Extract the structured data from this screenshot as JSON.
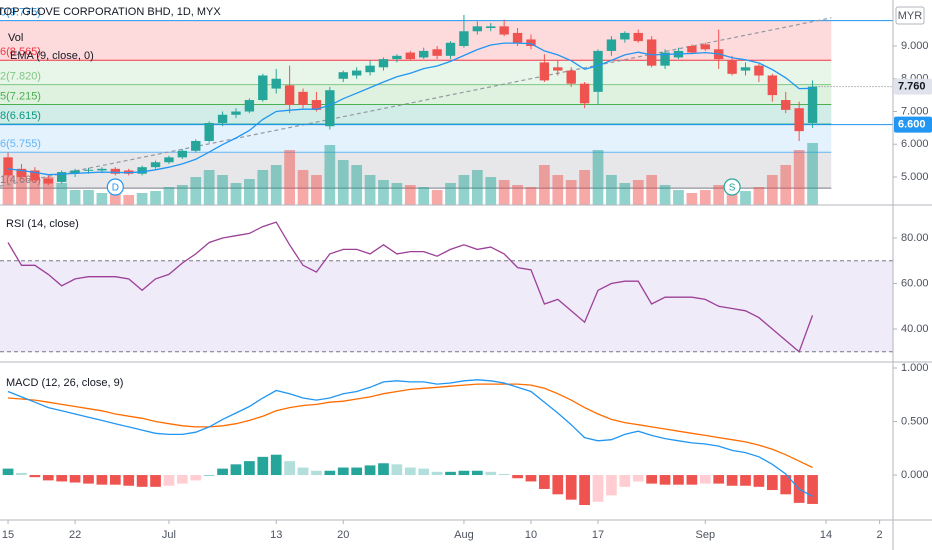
{
  "chart_data": [
    {
      "type": "candlestick",
      "title": "TOP GLOVE CORPORATION BHD, 1D, MYX",
      "currency": "MYR",
      "up_color": "#26a69a",
      "down_color": "#ef5350",
      "xlim": [
        -0.6,
        66
      ],
      "xticks": [
        {
          "value": 0,
          "label": "15"
        },
        {
          "value": 5,
          "label": "22"
        },
        {
          "value": 12,
          "label": "Jul"
        },
        {
          "value": 20,
          "label": "13"
        },
        {
          "value": 25,
          "label": "20"
        },
        {
          "value": 34,
          "label": "Aug"
        },
        {
          "value": 39,
          "label": "10"
        },
        {
          "value": 44,
          "label": "17"
        },
        {
          "value": 52,
          "label": "Sep"
        },
        {
          "value": 61,
          "label": "14"
        },
        {
          "value": 65,
          "label": "2"
        }
      ],
      "ylim": [
        4.145,
        10.405
      ],
      "yticks": [
        {
          "value": 9,
          "label": "9.000"
        },
        {
          "value": 8,
          "label": "8.000"
        },
        {
          "value": 7,
          "label": "7.000"
        },
        {
          "value": 6,
          "label": "6.000"
        },
        {
          "value": 5,
          "label": "5.000"
        }
      ],
      "open": [
        5.6,
        5.25,
        5.2,
        4.95,
        4.85,
        5.1,
        5.2,
        5.2,
        5.25,
        5.2,
        5.1,
        5.3,
        5.45,
        5.6,
        5.8,
        6.1,
        6.65,
        6.9,
        7.0,
        7.35,
        7.7,
        7.8,
        7.6,
        7.35,
        6.55,
        8.0,
        8.1,
        8.2,
        8.35,
        8.6,
        8.8,
        8.65,
        8.9,
        8.7,
        9.0,
        9.45,
        9.55,
        9.6,
        9.4,
        9.2,
        8.5,
        8.35,
        8.25,
        7.85,
        7.6,
        8.85,
        9.2,
        9.4,
        9.2,
        8.4,
        8.65,
        9.0,
        9.05,
        8.9,
        8.55,
        8.25,
        8.4,
        8.1,
        7.35,
        7.1,
        6.65
      ],
      "high": [
        5.75,
        5.4,
        5.3,
        5.05,
        5.2,
        5.25,
        5.28,
        5.3,
        5.3,
        5.25,
        5.35,
        5.5,
        5.65,
        5.85,
        6.15,
        6.7,
        7.0,
        7.1,
        7.4,
        8.15,
        8.3,
        8.4,
        7.7,
        7.6,
        7.75,
        8.25,
        8.35,
        8.55,
        8.65,
        8.75,
        8.85,
        8.95,
        9.0,
        9.15,
        9.95,
        9.75,
        9.7,
        9.8,
        9.55,
        9.35,
        8.75,
        8.55,
        8.35,
        7.9,
        8.9,
        9.3,
        9.45,
        9.5,
        9.3,
        8.9,
        8.95,
        9.05,
        9.1,
        9.5,
        8.7,
        8.5,
        8.45,
        8.15,
        7.6,
        7.3,
        7.95
      ],
      "low": [
        5.0,
        4.95,
        4.85,
        4.75,
        4.8,
        5.0,
        5.1,
        5.12,
        5.05,
        5.05,
        5.05,
        5.25,
        5.4,
        5.55,
        5.75,
        6.05,
        6.55,
        6.8,
        6.95,
        7.3,
        7.55,
        6.95,
        7.1,
        7.0,
        6.45,
        7.9,
        8.0,
        8.1,
        8.25,
        8.5,
        8.55,
        8.6,
        8.6,
        8.6,
        8.95,
        9.35,
        9.45,
        9.3,
        9.0,
        8.9,
        7.9,
        8.1,
        7.75,
        7.1,
        7.2,
        8.7,
        9.1,
        9.1,
        8.35,
        8.3,
        8.6,
        8.75,
        8.85,
        8.3,
        8.1,
        8.1,
        7.9,
        7.3,
        6.95,
        6.1,
        6.5
      ],
      "close": [
        5.05,
        5.0,
        4.9,
        4.8,
        5.15,
        5.2,
        5.22,
        5.25,
        5.1,
        5.1,
        5.3,
        5.45,
        5.6,
        5.8,
        6.1,
        6.65,
        6.9,
        7.0,
        7.35,
        8.1,
        8.0,
        7.2,
        7.2,
        7.05,
        7.65,
        8.2,
        8.25,
        8.4,
        8.6,
        8.7,
        8.6,
        8.85,
        8.7,
        9.1,
        9.45,
        9.6,
        9.6,
        9.35,
        9.1,
        9.0,
        7.95,
        8.25,
        7.85,
        7.25,
        8.85,
        9.2,
        9.4,
        9.15,
        8.4,
        8.8,
        8.85,
        8.8,
        8.9,
        8.6,
        8.15,
        8.35,
        8.1,
        7.5,
        7.05,
        6.4,
        7.76
      ],
      "volume": {
        "name": "Vol",
        "lim": [
          0,
          100
        ],
        "values": [
          30,
          35,
          25,
          28,
          22,
          15,
          15,
          12,
          18,
          10,
          12,
          14,
          18,
          20,
          28,
          35,
          30,
          22,
          26,
          35,
          40,
          55,
          35,
          30,
          60,
          45,
          40,
          30,
          25,
          22,
          20,
          18,
          15,
          22,
          30,
          35,
          28,
          25,
          20,
          18,
          40,
          30,
          25,
          35,
          55,
          30,
          22,
          25,
          30,
          20,
          15,
          12,
          15,
          20,
          18,
          14,
          18,
          30,
          40,
          55,
          62
        ]
      },
      "ema": {
        "name": "EMA (9, close, 0)",
        "color": "#2196f3",
        "values": [
          5.25,
          5.2,
          5.14,
          5.07,
          5.09,
          5.11,
          5.13,
          5.15,
          5.14,
          5.13,
          5.16,
          5.22,
          5.3,
          5.4,
          5.54,
          5.76,
          5.99,
          6.19,
          6.42,
          6.76,
          7.0,
          7.04,
          7.07,
          7.07,
          7.19,
          7.39,
          7.56,
          7.73,
          7.9,
          8.06,
          8.17,
          8.31,
          8.39,
          8.53,
          8.71,
          8.89,
          9.03,
          9.09,
          9.09,
          9.07,
          8.85,
          8.73,
          8.55,
          8.29,
          8.4,
          8.56,
          8.73,
          8.81,
          8.73,
          8.74,
          8.76,
          8.77,
          8.8,
          8.76,
          8.64,
          8.58,
          8.48,
          8.28,
          8.03,
          7.7,
          7.71
        ]
      },
      "fib": {
        "x_end": 61.4,
        "levels": [
          {
            "value": 9.775,
            "label": "0(9.775)",
            "color": "#2196f3"
          },
          {
            "value": 8.565,
            "label": "6(8.565)",
            "color": "#f23645"
          },
          {
            "value": 7.82,
            "label": "2(7.820)",
            "color": "#81c784"
          },
          {
            "value": 7.215,
            "label": "5(7.215)",
            "color": "#4caf50"
          },
          {
            "value": 6.615,
            "label": "8(6.615)",
            "color": "#089981"
          },
          {
            "value": 5.755,
            "label": "6(5.755)",
            "color": "#64b5f6"
          },
          {
            "value": 4.66,
            "label": "1(4.660)",
            "color": "#787b86"
          }
        ]
      },
      "trend_line": {
        "x": [
          -0.6,
          61.4
        ],
        "y": [
          4.72,
          9.86
        ],
        "color": "#9598a1"
      },
      "price_labels": [
        {
          "value": 7.76,
          "label": "7.760",
          "color": "#e0e3eb",
          "text_color": "#131722"
        },
        {
          "value": 6.6,
          "label": "6.600",
          "color": "#2196f3",
          "text_color": "#ffffff"
        }
      ],
      "markers": [
        {
          "x": 8,
          "label": "D",
          "color": "#2196f3"
        },
        {
          "x": 54,
          "label": "S",
          "color": "#26a69a"
        }
      ]
    },
    {
      "type": "line",
      "title": "RSI (14, close)",
      "color": "#9c3f98",
      "ylim": [
        25.5,
        94.5
      ],
      "yticks": [
        {
          "value": 80,
          "label": "80.00"
        },
        {
          "value": 60,
          "label": "60.00"
        },
        {
          "value": 40,
          "label": "40.00"
        }
      ],
      "band": [
        30,
        70
      ],
      "band_color": "#7e57c2",
      "values": [
        78,
        68,
        68,
        64,
        59,
        62,
        63,
        63,
        63,
        62,
        57,
        62,
        64,
        69,
        73,
        78,
        80,
        81,
        82,
        85,
        87,
        77,
        68,
        65,
        73,
        75,
        75,
        73,
        77,
        73,
        74,
        74,
        72,
        75,
        77,
        75,
        76,
        73,
        67,
        66,
        51,
        53,
        48,
        43,
        57,
        60,
        61,
        61,
        51,
        54,
        54,
        54,
        53,
        50,
        49,
        48,
        45,
        40,
        35,
        30,
        46
      ]
    },
    {
      "type": "macd",
      "title": "MACD (12, 26, close, 9)",
      "ylim": [
        -0.42,
        1.056
      ],
      "yticks": [
        {
          "value": 1,
          "label": "1.000"
        },
        {
          "value": 0.5,
          "label": "0.500"
        },
        {
          "value": 0,
          "label": "0.000"
        }
      ],
      "macd": {
        "color": "#2196f3",
        "values": [
          0.78,
          0.73,
          0.68,
          0.63,
          0.6,
          0.57,
          0.54,
          0.51,
          0.48,
          0.45,
          0.42,
          0.39,
          0.38,
          0.38,
          0.4,
          0.45,
          0.52,
          0.58,
          0.64,
          0.72,
          0.79,
          0.76,
          0.72,
          0.7,
          0.72,
          0.76,
          0.78,
          0.82,
          0.87,
          0.88,
          0.87,
          0.87,
          0.85,
          0.86,
          0.88,
          0.89,
          0.88,
          0.86,
          0.82,
          0.78,
          0.68,
          0.58,
          0.47,
          0.35,
          0.32,
          0.33,
          0.38,
          0.41,
          0.37,
          0.34,
          0.32,
          0.3,
          0.29,
          0.27,
          0.23,
          0.21,
          0.17,
          0.1,
          0.01,
          -0.13,
          -0.2
        ]
      },
      "signal": {
        "color": "#ff6d00",
        "values": [
          0.72,
          0.71,
          0.7,
          0.68,
          0.66,
          0.64,
          0.62,
          0.6,
          0.57,
          0.55,
          0.53,
          0.5,
          0.48,
          0.46,
          0.45,
          0.45,
          0.46,
          0.48,
          0.51,
          0.55,
          0.6,
          0.63,
          0.65,
          0.66,
          0.68,
          0.69,
          0.71,
          0.73,
          0.76,
          0.78,
          0.8,
          0.81,
          0.82,
          0.83,
          0.84,
          0.85,
          0.85,
          0.85,
          0.85,
          0.84,
          0.81,
          0.76,
          0.7,
          0.63,
          0.57,
          0.52,
          0.49,
          0.47,
          0.45,
          0.43,
          0.41,
          0.39,
          0.37,
          0.35,
          0.33,
          0.31,
          0.28,
          0.24,
          0.19,
          0.13,
          0.07
        ]
      },
      "histogram": {
        "colors": {
          "up_rising": "#26a69a",
          "up_falling": "#b2dfdb",
          "down_falling": "#ef5350",
          "down_rising": "#ffcdd2"
        },
        "values": [
          0.06,
          0.02,
          -0.02,
          -0.05,
          -0.06,
          -0.07,
          -0.08,
          -0.09,
          -0.09,
          -0.1,
          -0.11,
          -0.11,
          -0.1,
          -0.08,
          -0.05,
          0.0,
          0.06,
          0.1,
          0.13,
          0.17,
          0.19,
          0.13,
          0.07,
          0.04,
          0.04,
          0.07,
          0.07,
          0.09,
          0.11,
          0.1,
          0.07,
          0.06,
          0.03,
          0.03,
          0.04,
          0.04,
          0.03,
          0.01,
          -0.03,
          -0.06,
          -0.13,
          -0.18,
          -0.23,
          -0.28,
          -0.25,
          -0.19,
          -0.11,
          -0.06,
          -0.08,
          -0.09,
          -0.09,
          -0.09,
          -0.08,
          -0.08,
          -0.1,
          -0.1,
          -0.11,
          -0.14,
          -0.18,
          -0.26,
          -0.27
        ]
      }
    }
  ]
}
